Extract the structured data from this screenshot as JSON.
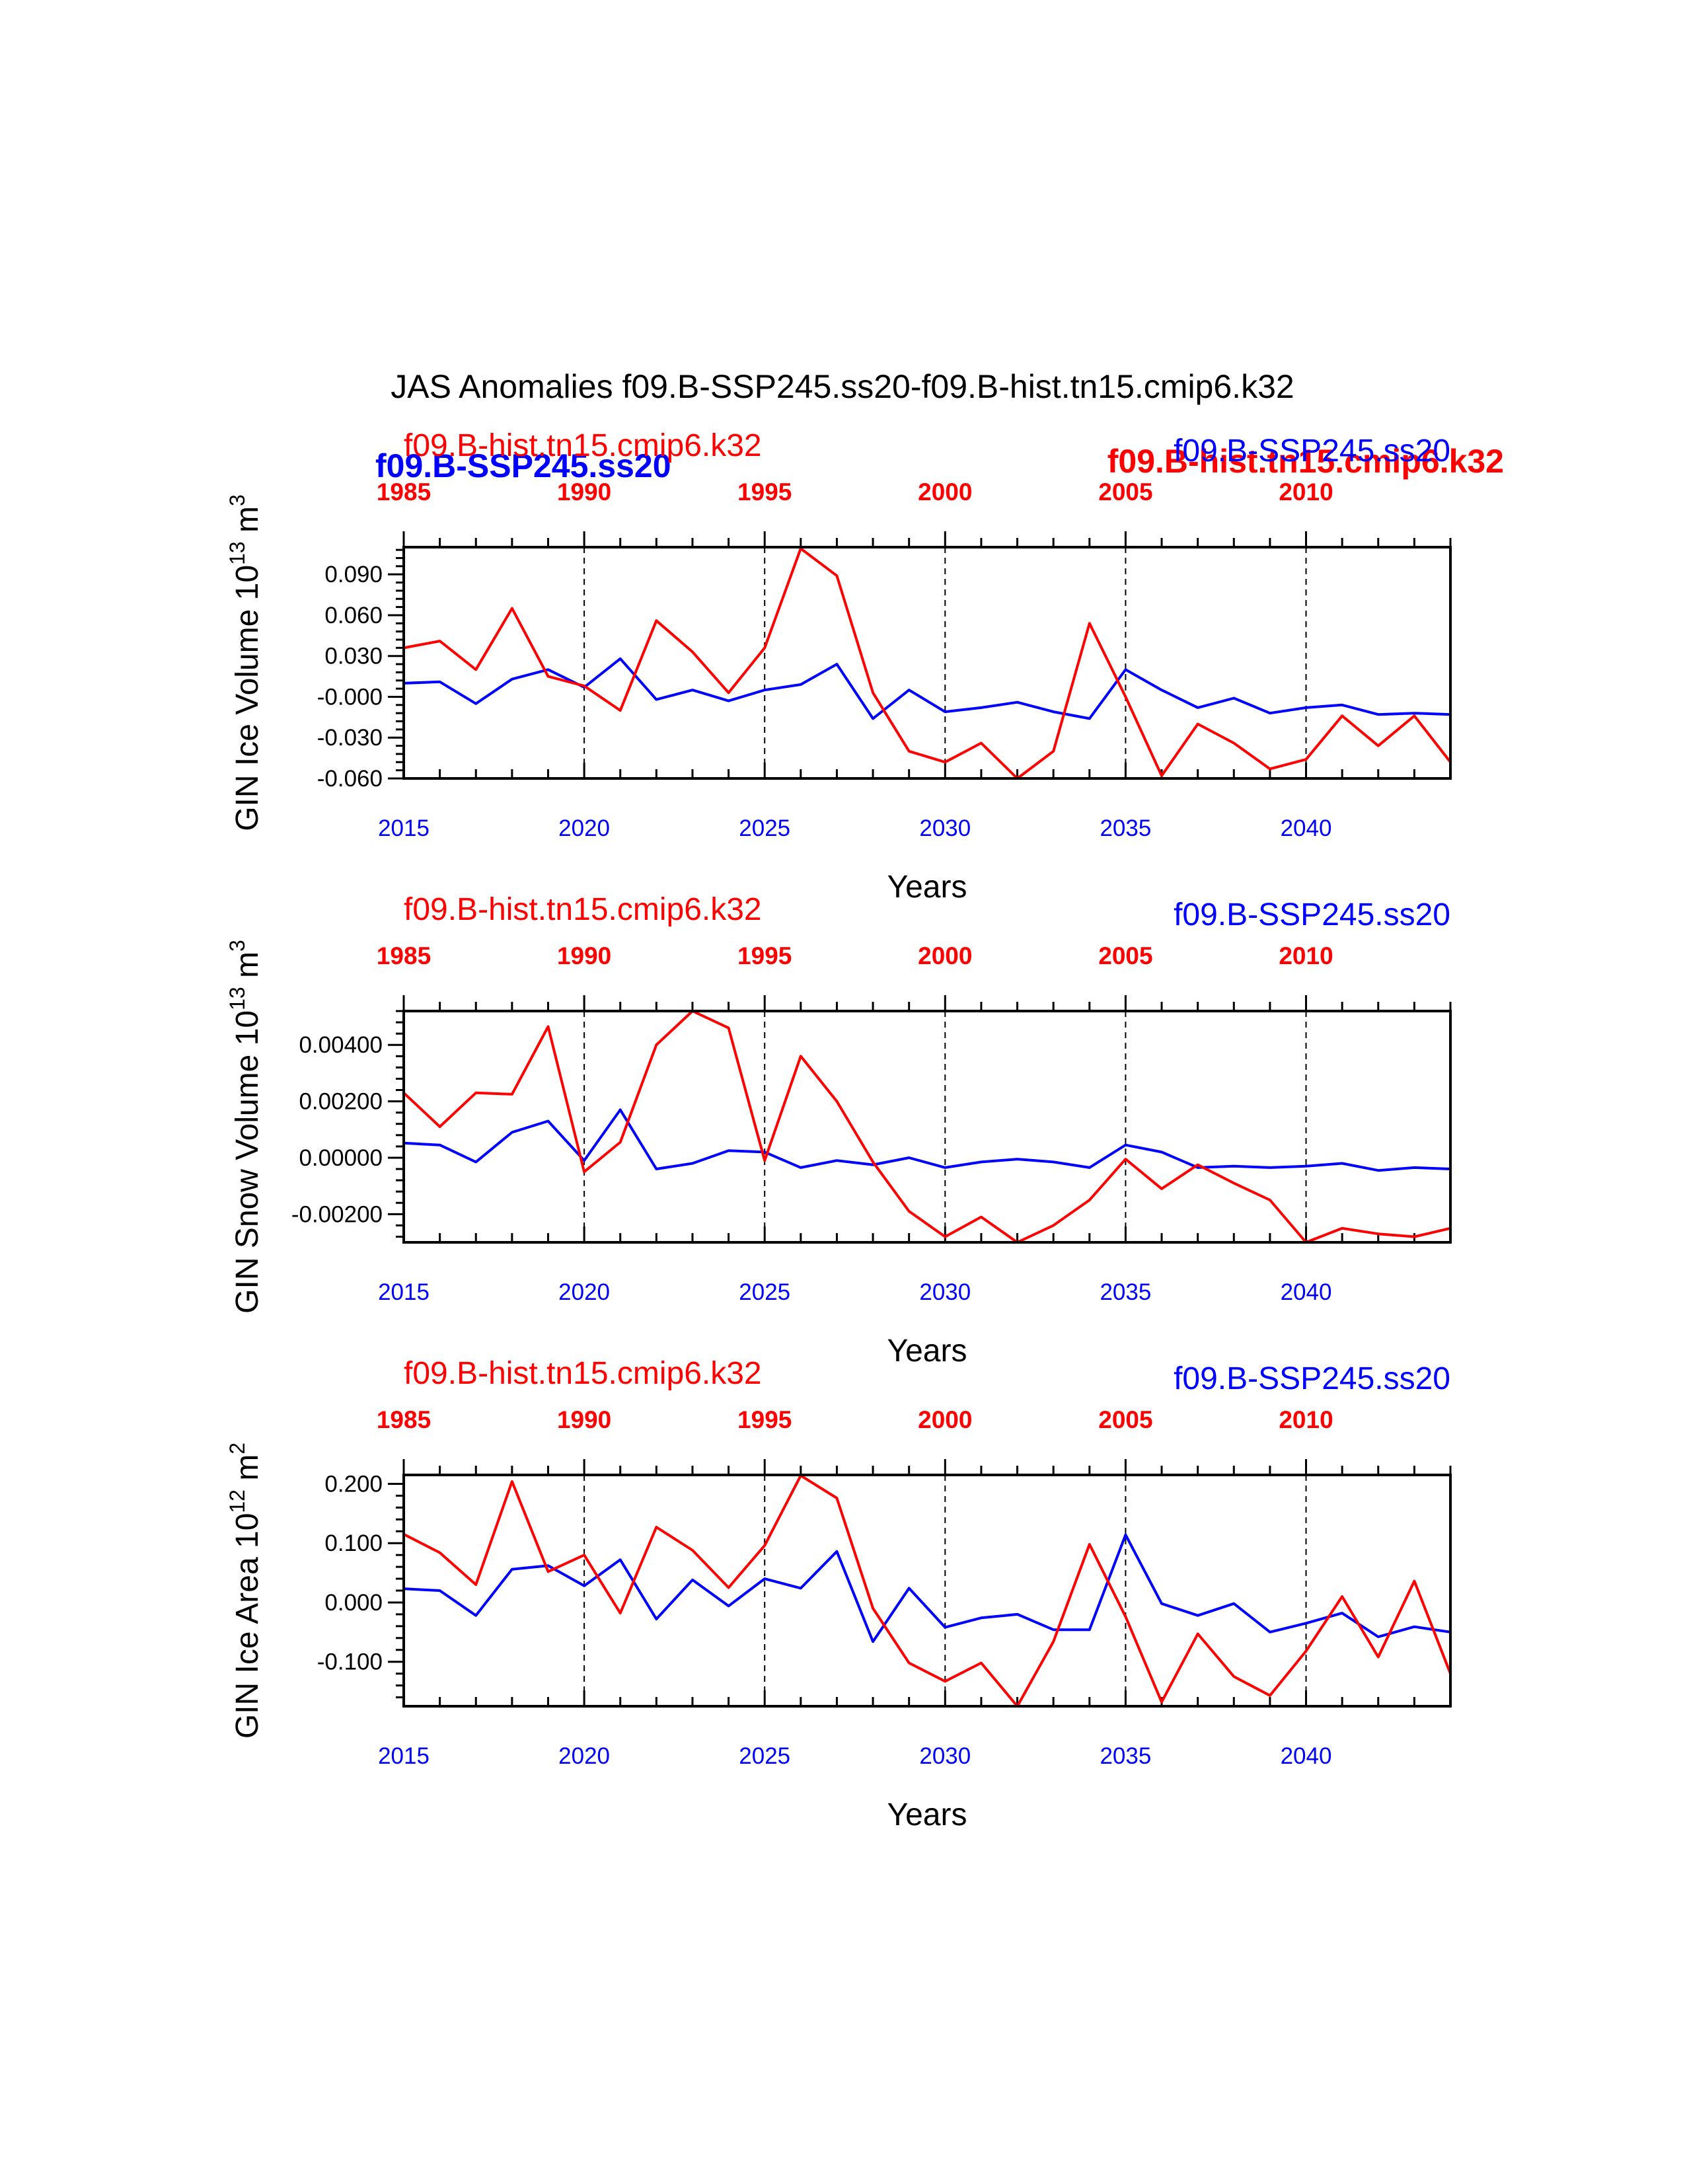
{
  "title": "JAS Anomalies f09.B-SSP245.ss20-f09.B-hist.tn15.cmip6.k32",
  "legend_overlay": {
    "blue_bold": "f09.B-SSP245.ss20",
    "red_bold": "f09.B-hist.tn15.cmip6.k32"
  },
  "colors": {
    "ssp245": "#0000ff",
    "hist": "#ff0000",
    "axis": "#000000"
  },
  "chart_data": [
    {
      "type": "line",
      "ylabel_text": "GIN Ice Volume 10",
      "ylabel_exp": "13",
      "ylabel_unit": " m",
      "ylabel_unit_exp": "3",
      "xlabel": "Years",
      "label_left": "f09.B-hist.tn15.cmip6.k32",
      "label_right": "f09.B-SSP245.ss20",
      "xlim": [
        2015,
        2044
      ],
      "ylim": [
        -0.06,
        0.11
      ],
      "grid_x": [
        2020,
        2025,
        2030,
        2035,
        2040
      ],
      "x_ticks_bottom": [
        {
          "value": 2015,
          "label": "2015"
        },
        {
          "value": 2020,
          "label": "2020"
        },
        {
          "value": 2025,
          "label": "2025"
        },
        {
          "value": 2030,
          "label": "2030"
        },
        {
          "value": 2035,
          "label": "2035"
        },
        {
          "value": 2040,
          "label": "2040"
        }
      ],
      "x_ticks_top": [
        {
          "value": 2015,
          "label": "1985"
        },
        {
          "value": 2020,
          "label": "1990"
        },
        {
          "value": 2025,
          "label": "1995"
        },
        {
          "value": 2030,
          "label": "2000"
        },
        {
          "value": 2035,
          "label": "2005"
        },
        {
          "value": 2040,
          "label": "2010"
        }
      ],
      "y_ticks": [
        {
          "value": 0.09,
          "label": "0.090"
        },
        {
          "value": 0.06,
          "label": "0.060"
        },
        {
          "value": 0.03,
          "label": "0.030"
        },
        {
          "value": 0.0,
          "label": "-0.000"
        },
        {
          "value": -0.03,
          "label": "-0.030"
        },
        {
          "value": -0.06,
          "label": "-0.060"
        }
      ],
      "x": [
        2015,
        2016,
        2017,
        2018,
        2019,
        2020,
        2021,
        2022,
        2023,
        2024,
        2025,
        2026,
        2027,
        2028,
        2029,
        2030,
        2031,
        2032,
        2033,
        2034,
        2035,
        2036,
        2037,
        2038,
        2039,
        2040,
        2041,
        2042,
        2043,
        2044
      ],
      "series": [
        {
          "name": "f09.B-SSP245.ss20",
          "color": "#0000ff",
          "values": [
            0.01,
            0.011,
            -0.005,
            0.013,
            0.02,
            0.007,
            0.028,
            -0.002,
            0.005,
            -0.003,
            0.005,
            0.009,
            0.024,
            -0.016,
            0.005,
            -0.011,
            -0.008,
            -0.004,
            -0.011,
            -0.016,
            0.02,
            0.005,
            -0.008,
            -0.001,
            -0.012,
            -0.008,
            -0.006,
            -0.013,
            -0.012,
            -0.013
          ]
        },
        {
          "name": "f09.B-hist.tn15.cmip6.k32",
          "color": "#ff0000",
          "values": [
            0.036,
            0.041,
            0.02,
            0.065,
            0.015,
            0.008,
            -0.01,
            0.056,
            0.033,
            0.003,
            0.036,
            0.109,
            0.089,
            0.003,
            -0.04,
            -0.048,
            -0.034,
            -0.06,
            -0.04,
            0.054,
            0.0,
            -0.058,
            -0.02,
            -0.034,
            -0.053,
            -0.046,
            -0.014,
            -0.036,
            -0.014,
            -0.048
          ]
        }
      ]
    },
    {
      "type": "line",
      "ylabel_text": "GIN Snow Volume 10",
      "ylabel_exp": "13",
      "ylabel_unit": " m",
      "ylabel_unit_exp": "3",
      "xlabel": "Years",
      "label_left": "f09.B-hist.tn15.cmip6.k32",
      "label_right": "f09.B-SSP245.ss20",
      "xlim": [
        2015,
        2044
      ],
      "ylim": [
        -0.003,
        0.0052
      ],
      "grid_x": [
        2020,
        2025,
        2030,
        2035,
        2040
      ],
      "x_ticks_bottom": [
        {
          "value": 2015,
          "label": "2015"
        },
        {
          "value": 2020,
          "label": "2020"
        },
        {
          "value": 2025,
          "label": "2025"
        },
        {
          "value": 2030,
          "label": "2030"
        },
        {
          "value": 2035,
          "label": "2035"
        },
        {
          "value": 2040,
          "label": "2040"
        }
      ],
      "x_ticks_top": [
        {
          "value": 2015,
          "label": "1985"
        },
        {
          "value": 2020,
          "label": "1990"
        },
        {
          "value": 2025,
          "label": "1995"
        },
        {
          "value": 2030,
          "label": "2000"
        },
        {
          "value": 2035,
          "label": "2005"
        },
        {
          "value": 2040,
          "label": "2010"
        }
      ],
      "y_ticks": [
        {
          "value": 0.004,
          "label": "0.00400"
        },
        {
          "value": 0.002,
          "label": "0.00200"
        },
        {
          "value": 0.0,
          "label": "0.00000"
        },
        {
          "value": -0.002,
          "label": "-0.00200"
        }
      ],
      "x": [
        2015,
        2016,
        2017,
        2018,
        2019,
        2020,
        2021,
        2022,
        2023,
        2024,
        2025,
        2026,
        2027,
        2028,
        2029,
        2030,
        2031,
        2032,
        2033,
        2034,
        2035,
        2036,
        2037,
        2038,
        2039,
        2040,
        2041,
        2042,
        2043,
        2044
      ],
      "series": [
        {
          "name": "f09.B-SSP245.ss20",
          "color": "#0000ff",
          "values": [
            0.00052,
            0.00045,
            -0.00015,
            0.0009,
            0.0013,
            -0.0001,
            0.0017,
            -0.0004,
            -0.0002,
            0.00025,
            0.0002,
            -0.00035,
            -0.0001,
            -0.00025,
            0.0,
            -0.00035,
            -0.00015,
            -5e-05,
            -0.00015,
            -0.00035,
            0.00045,
            0.0002,
            -0.00035,
            -0.0003,
            -0.00035,
            -0.0003,
            -0.0002,
            -0.00045,
            -0.00035,
            -0.0004
          ]
        },
        {
          "name": "f09.B-hist.tn15.cmip6.k32",
          "color": "#ff0000",
          "values": [
            0.0023,
            0.0011,
            0.0023,
            0.00225,
            0.00465,
            -0.0005,
            0.00055,
            0.004,
            0.0052,
            0.0046,
            -0.0001,
            0.0036,
            0.002,
            -0.00015,
            -0.0019,
            -0.0028,
            -0.0021,
            -0.003,
            -0.0024,
            -0.0015,
            -5e-05,
            -0.0011,
            -0.00025,
            -0.0009,
            -0.0015,
            -0.003,
            -0.0025,
            -0.0027,
            -0.0028,
            -0.0025
          ]
        }
      ]
    },
    {
      "type": "line",
      "ylabel_text": "GIN Ice Area 10",
      "ylabel_exp": "12",
      "ylabel_unit": " m",
      "ylabel_unit_exp": "2",
      "xlabel": "Years",
      "label_left": "f09.B-hist.tn15.cmip6.k32",
      "label_right": "f09.B-SSP245.ss20",
      "xlim": [
        2015,
        2044
      ],
      "ylim": [
        -0.175,
        0.215
      ],
      "grid_x": [
        2020,
        2025,
        2030,
        2035,
        2040
      ],
      "x_ticks_bottom": [
        {
          "value": 2015,
          "label": "2015"
        },
        {
          "value": 2020,
          "label": "2020"
        },
        {
          "value": 2025,
          "label": "2025"
        },
        {
          "value": 2030,
          "label": "2030"
        },
        {
          "value": 2035,
          "label": "2035"
        },
        {
          "value": 2040,
          "label": "2040"
        }
      ],
      "x_ticks_top": [
        {
          "value": 2015,
          "label": "1985"
        },
        {
          "value": 2020,
          "label": "1990"
        },
        {
          "value": 2025,
          "label": "1995"
        },
        {
          "value": 2030,
          "label": "2000"
        },
        {
          "value": 2035,
          "label": "2005"
        },
        {
          "value": 2040,
          "label": "2010"
        }
      ],
      "y_ticks": [
        {
          "value": 0.2,
          "label": "0.200"
        },
        {
          "value": 0.1,
          "label": "0.100"
        },
        {
          "value": 0.0,
          "label": "0.000"
        },
        {
          "value": -0.1,
          "label": "-0.100"
        }
      ],
      "x": [
        2015,
        2016,
        2017,
        2018,
        2019,
        2020,
        2021,
        2022,
        2023,
        2024,
        2025,
        2026,
        2027,
        2028,
        2029,
        2030,
        2031,
        2032,
        2033,
        2034,
        2035,
        2036,
        2037,
        2038,
        2039,
        2040,
        2041,
        2042,
        2043,
        2044
      ],
      "series": [
        {
          "name": "f09.B-SSP245.ss20",
          "color": "#0000ff",
          "values": [
            0.023,
            0.02,
            -0.022,
            0.056,
            0.062,
            0.028,
            0.072,
            -0.028,
            0.038,
            -0.006,
            0.04,
            0.024,
            0.086,
            -0.066,
            0.024,
            -0.042,
            -0.026,
            -0.02,
            -0.046,
            -0.046,
            0.114,
            -0.002,
            -0.022,
            -0.002,
            -0.05,
            -0.035,
            -0.018,
            -0.058,
            -0.041,
            -0.05
          ]
        },
        {
          "name": "f09.B-hist.tn15.cmip6.k32",
          "color": "#ff0000",
          "values": [
            0.115,
            0.084,
            0.03,
            0.204,
            0.052,
            0.08,
            -0.018,
            0.127,
            0.088,
            0.025,
            0.096,
            0.214,
            0.176,
            -0.01,
            -0.102,
            -0.133,
            -0.102,
            -0.175,
            -0.066,
            0.098,
            -0.024,
            -0.168,
            -0.053,
            -0.125,
            -0.157,
            -0.082,
            0.01,
            -0.092,
            0.036,
            -0.12
          ]
        }
      ]
    }
  ]
}
